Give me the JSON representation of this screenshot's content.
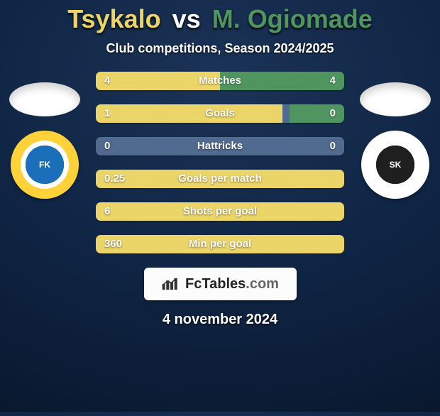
{
  "header": {
    "playerA": "Tsykalo",
    "vs": "vs",
    "playerB": "M. Ogiomade",
    "subtitle": "Club competitions, Season 2024/2025"
  },
  "colors": {
    "playerA": "#ecd568",
    "playerB": "#509560",
    "barBg": "#506b8f",
    "watermarkBg": "#fcfcfc"
  },
  "clubs": {
    "left": {
      "outer": "#ffd23a",
      "inner": "#1b6fb8",
      "label": "FK"
    },
    "right": {
      "outer": "#ffffff",
      "inner": "#1f1f1f",
      "label": "SK"
    }
  },
  "stats": [
    {
      "label": "Matches",
      "a": "4",
      "b": "4",
      "pctA": 50,
      "pctB": 50
    },
    {
      "label": "Goals",
      "a": "1",
      "b": "0",
      "pctA": 75,
      "pctB": 22
    },
    {
      "label": "Hattricks",
      "a": "0",
      "b": "0",
      "pctA": 0,
      "pctB": 0
    },
    {
      "label": "Goals per match",
      "a": "0.25",
      "b": "",
      "pctA": 100,
      "pctB": 0
    },
    {
      "label": "Shots per goal",
      "a": "6",
      "b": "",
      "pctA": 100,
      "pctB": 0
    },
    {
      "label": "Min per goal",
      "a": "360",
      "b": "",
      "pctA": 100,
      "pctB": 0
    }
  ],
  "watermark": {
    "name": "FcTables",
    "domain": ".com"
  },
  "date": "4 november 2024"
}
